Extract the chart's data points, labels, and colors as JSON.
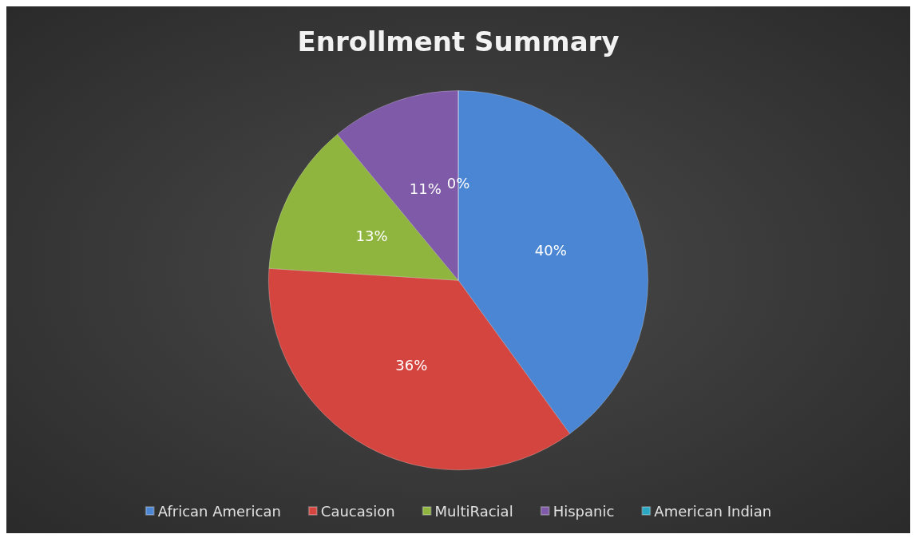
{
  "chart_data": {
    "type": "pie",
    "title": "Enrollment Summary",
    "categories": [
      "African American",
      "Caucasion",
      "MultiRacial",
      "Hispanic",
      "American Indian"
    ],
    "values": [
      40,
      36,
      13,
      11,
      0
    ],
    "colors": [
      "#4a86d4",
      "#d5453f",
      "#8fb53e",
      "#7e5aa8",
      "#2aa7c2"
    ],
    "value_labels": [
      "40%",
      "36%",
      "13%",
      "11%",
      "0%"
    ],
    "legend": "bottom"
  }
}
